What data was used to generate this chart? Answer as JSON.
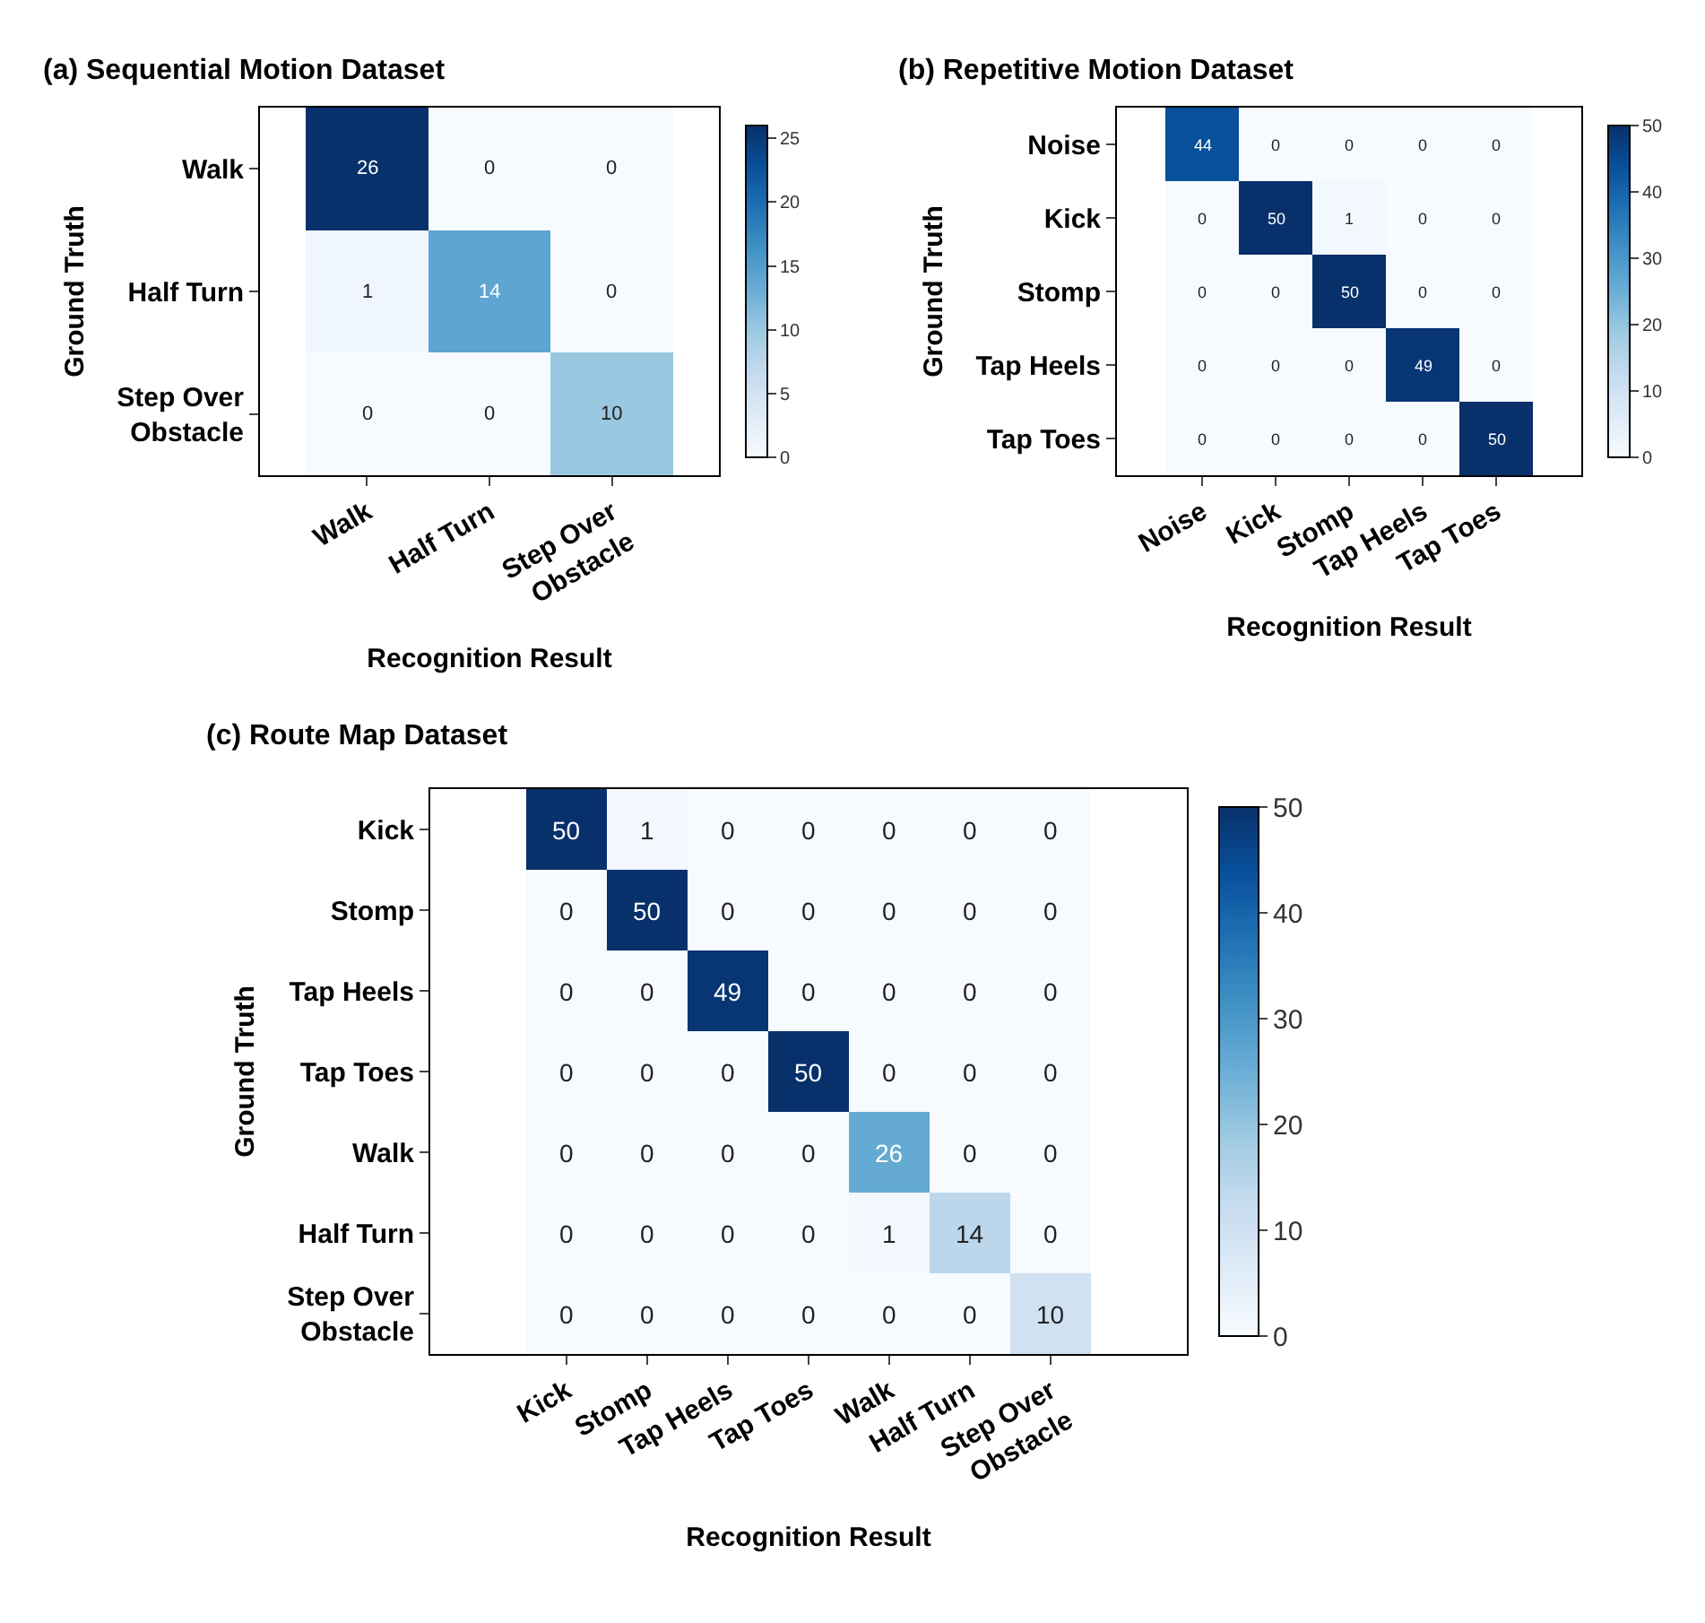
{
  "chart_data": [
    {
      "type": "heatmap",
      "title": "(a) Sequential Motion Dataset",
      "xlabel": "Recognition Result",
      "ylabel": "Ground Truth",
      "categories": [
        "Walk",
        "Half Turn",
        "Step Over Obstacle"
      ],
      "y_categories": [
        "Walk",
        "Half Turn",
        "Step Over Obstacle"
      ],
      "cells": [
        [
          26,
          0,
          0
        ],
        [
          1,
          14,
          0
        ],
        [
          0,
          0,
          10
        ]
      ],
      "clim": [
        0,
        26
      ],
      "cticks": [
        0,
        5,
        10,
        15,
        20,
        25
      ],
      "data_labels": true
    },
    {
      "type": "heatmap",
      "title": "(b) Repetitive Motion Dataset",
      "xlabel": "Recognition Result",
      "ylabel": "Ground Truth",
      "categories": [
        "Noise",
        "Kick",
        "Stomp",
        "Tap Heels",
        "Tap Toes"
      ],
      "y_categories": [
        "Noise",
        "Kick",
        "Stomp",
        "Tap Heels",
        "Tap Toes"
      ],
      "cells": [
        [
          44,
          0,
          0,
          0,
          0
        ],
        [
          0,
          50,
          1,
          0,
          0
        ],
        [
          0,
          0,
          50,
          0,
          0
        ],
        [
          0,
          0,
          0,
          49,
          0
        ],
        [
          0,
          0,
          0,
          0,
          50
        ]
      ],
      "clim": [
        0,
        50
      ],
      "cticks": [
        0,
        10,
        20,
        30,
        40,
        50
      ],
      "data_labels": true
    },
    {
      "type": "heatmap",
      "title": "(c) Route Map Dataset",
      "xlabel": "Recognition Result",
      "ylabel": "Ground Truth",
      "categories": [
        "Kick",
        "Stomp",
        "Tap Heels",
        "Tap Toes",
        "Walk",
        "Half Turn",
        "Step Over Obstacle"
      ],
      "y_categories": [
        "Kick",
        "Stomp",
        "Tap Heels",
        "Tap Toes",
        "Walk",
        "Half Turn",
        "Step Over Obstacle"
      ],
      "cells": [
        [
          50,
          1,
          0,
          0,
          0,
          0,
          0
        ],
        [
          0,
          50,
          0,
          0,
          0,
          0,
          0
        ],
        [
          0,
          0,
          49,
          0,
          0,
          0,
          0
        ],
        [
          0,
          0,
          0,
          50,
          0,
          0,
          0
        ],
        [
          0,
          0,
          0,
          0,
          26,
          0,
          0
        ],
        [
          0,
          0,
          0,
          0,
          1,
          14,
          0
        ],
        [
          0,
          0,
          0,
          0,
          0,
          0,
          10
        ]
      ],
      "clim": [
        0,
        50
      ],
      "cticks": [
        0,
        10,
        20,
        30,
        40,
        50
      ],
      "data_labels": true
    }
  ]
}
